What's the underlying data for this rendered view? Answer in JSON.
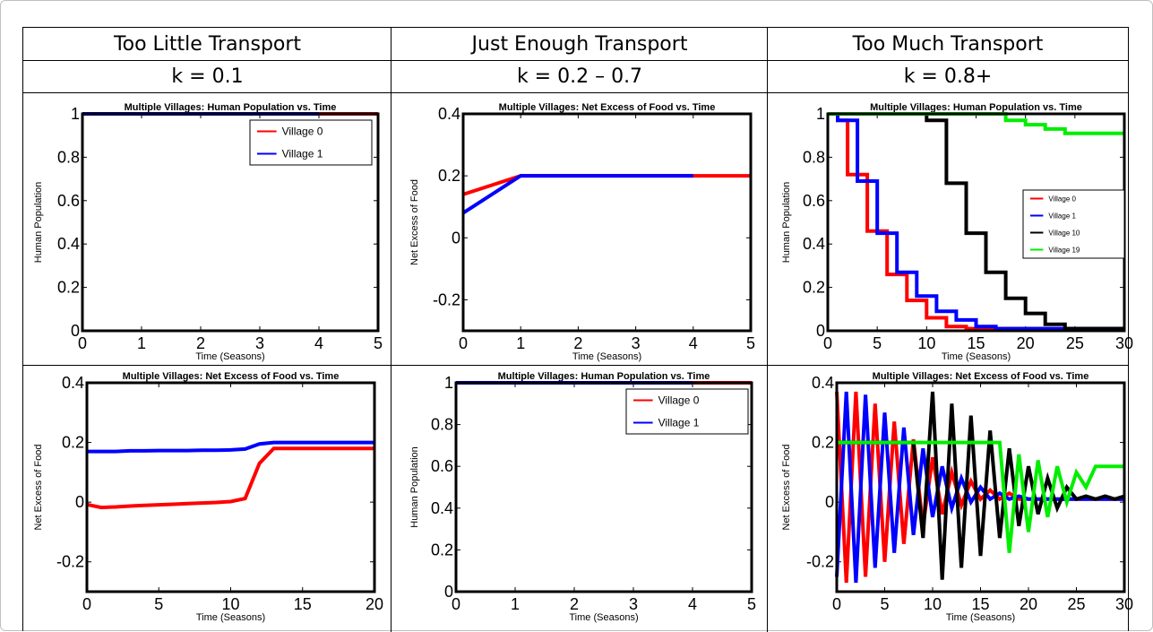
{
  "table": {
    "columns": [
      {
        "heading": "Too Little Transport",
        "k_label": "k = 0.1"
      },
      {
        "heading": "Just Enough Transport",
        "k_label": "k = 0.2 – 0.7"
      },
      {
        "heading": "Too Much Transport",
        "k_label": "k = 0.8+"
      }
    ]
  },
  "colors": {
    "village0": "#ff0000",
    "village1": "#0000ff",
    "village10": "#000000",
    "village19": "#00ee00"
  },
  "chart_data": [
    {
      "id": "r1c1",
      "type": "line",
      "title": "Multiple Villages: Human Population vs. Time",
      "xlabel": "Time (Seasons)",
      "ylabel": "Human Population",
      "xlim": [
        0,
        5
      ],
      "ylim": [
        0,
        1
      ],
      "xticks": [
        0,
        1,
        2,
        3,
        4,
        5
      ],
      "yticks": [
        0,
        0.2,
        0.4,
        0.6,
        0.8,
        1
      ],
      "yticklabels": [
        "0",
        "0.2",
        "0.4",
        "0.6",
        "0.8",
        "1"
      ],
      "legend": "top-right",
      "series": [
        {
          "name": "Village 0",
          "color": "#ff0000",
          "x": [
            0,
            1,
            2,
            3,
            4,
            5
          ],
          "y": [
            1,
            1,
            1,
            1,
            1,
            1
          ]
        },
        {
          "name": "Village 1",
          "color": "#0000ff",
          "x": [
            0,
            1,
            2,
            3,
            4
          ],
          "y": [
            1,
            1,
            1,
            1,
            1
          ]
        }
      ]
    },
    {
      "id": "r1c2",
      "type": "line",
      "title": "Multiple Villages: Net Excess of Food vs. Time",
      "xlabel": "Time (Seasons)",
      "ylabel": "Net Excess of Food",
      "xlim": [
        0,
        5
      ],
      "ylim": [
        -0.3,
        0.4
      ],
      "xticks": [
        0,
        1,
        2,
        3,
        4,
        5
      ],
      "yticks": [
        -0.2,
        0,
        0.2,
        0.4
      ],
      "yticklabels": [
        "-0.2",
        "0",
        "0.2",
        "0.4"
      ],
      "legend": "none",
      "series": [
        {
          "color": "#ff0000",
          "x": [
            0,
            1,
            2,
            3,
            4,
            5
          ],
          "y": [
            0.14,
            0.2,
            0.2,
            0.2,
            0.2,
            0.2
          ]
        },
        {
          "color": "#0000ff",
          "x": [
            0,
            1,
            2,
            3,
            4
          ],
          "y": [
            0.08,
            0.2,
            0.2,
            0.2,
            0.2
          ]
        }
      ]
    },
    {
      "id": "r1c3",
      "type": "line",
      "title": "Multiple Villages: Human Population vs. Time",
      "xlabel": "Time (Seasons)",
      "ylabel": "Human Population",
      "xlim": [
        0,
        30
      ],
      "ylim": [
        0,
        1
      ],
      "xticks": [
        0,
        5,
        10,
        15,
        20,
        25,
        30
      ],
      "yticks": [
        0,
        0.2,
        0.4,
        0.6,
        0.8,
        1
      ],
      "yticklabels": [
        "0",
        "0.2",
        "0.4",
        "0.6",
        "0.8",
        "1"
      ],
      "legend": "right",
      "series": [
        {
          "name": "Village 0",
          "color": "#ff0000",
          "step": true,
          "x": [
            0,
            1,
            2,
            3,
            4,
            5,
            6,
            7,
            8,
            9,
            10,
            11,
            12,
            13,
            14,
            15,
            30
          ],
          "y": [
            1,
            0.97,
            0.72,
            0.72,
            0.46,
            0.46,
            0.26,
            0.26,
            0.14,
            0.14,
            0.06,
            0.06,
            0.02,
            0.02,
            0.01,
            0.01,
            0.01
          ]
        },
        {
          "name": "Village 1",
          "color": "#0000ff",
          "step": true,
          "x": [
            0,
            1,
            2,
            3,
            4,
            5,
            6,
            7,
            8,
            9,
            10,
            11,
            12,
            13,
            14,
            15,
            16,
            17,
            18,
            30
          ],
          "y": [
            1,
            0.97,
            0.97,
            0.69,
            0.69,
            0.45,
            0.45,
            0.27,
            0.27,
            0.16,
            0.16,
            0.09,
            0.09,
            0.05,
            0.05,
            0.02,
            0.02,
            0.01,
            0.01,
            0.01
          ]
        },
        {
          "name": "Village 10",
          "color": "#000000",
          "step": true,
          "x": [
            0,
            9,
            10,
            11,
            12,
            13,
            14,
            15,
            16,
            17,
            18,
            19,
            20,
            21,
            22,
            23,
            24,
            30
          ],
          "y": [
            1,
            1,
            0.97,
            0.97,
            0.68,
            0.68,
            0.45,
            0.45,
            0.27,
            0.27,
            0.15,
            0.15,
            0.08,
            0.08,
            0.03,
            0.03,
            0.01,
            0.01
          ]
        },
        {
          "name": "Village 19",
          "color": "#00ee00",
          "step": true,
          "x": [
            0,
            17,
            18,
            19,
            20,
            21,
            22,
            23,
            24,
            25,
            30
          ],
          "y": [
            1,
            1,
            0.97,
            0.97,
            0.95,
            0.95,
            0.93,
            0.93,
            0.91,
            0.91,
            0.91
          ]
        }
      ]
    },
    {
      "id": "r2c1",
      "type": "line",
      "title": "Multiple Villages: Net Excess of Food vs. Time",
      "xlabel": "Time (Seasons)",
      "ylabel": "Net Excess of Food",
      "xlim": [
        0,
        20
      ],
      "ylim": [
        -0.3,
        0.4
      ],
      "xticks": [
        0,
        5,
        10,
        15,
        20
      ],
      "yticks": [
        -0.2,
        0,
        0.2,
        0.4
      ],
      "yticklabels": [
        "-0.2",
        "0",
        "0.2",
        "0.4"
      ],
      "legend": "none",
      "series": [
        {
          "color": "#ff0000",
          "x": [
            0,
            1,
            2,
            3,
            4,
            5,
            6,
            7,
            8,
            9,
            10,
            11,
            12,
            13,
            14,
            15,
            16,
            17,
            18,
            19,
            20
          ],
          "y": [
            -0.008,
            -0.018,
            -0.016,
            -0.013,
            -0.011,
            -0.009,
            -0.007,
            -0.005,
            -0.003,
            -0.001,
            0.002,
            0.012,
            0.13,
            0.18,
            0.18,
            0.18,
            0.18,
            0.18,
            0.18,
            0.18,
            0.18
          ]
        },
        {
          "color": "#0000ff",
          "x": [
            0,
            1,
            2,
            3,
            4,
            5,
            6,
            7,
            8,
            9,
            10,
            11,
            12,
            13,
            14,
            15,
            16,
            17,
            18,
            19,
            20
          ],
          "y": [
            0.17,
            0.17,
            0.17,
            0.172,
            0.172,
            0.173,
            0.173,
            0.173,
            0.174,
            0.174,
            0.175,
            0.178,
            0.195,
            0.2,
            0.2,
            0.2,
            0.2,
            0.2,
            0.2,
            0.2,
            0.2
          ]
        }
      ]
    },
    {
      "id": "r2c2",
      "type": "line",
      "title": "Multiple Villages: Human Population vs. Time",
      "xlabel": "Time (Seasons)",
      "ylabel": "Human Population",
      "xlim": [
        0,
        5
      ],
      "ylim": [
        0,
        1
      ],
      "xticks": [
        0,
        1,
        2,
        3,
        4,
        5
      ],
      "yticks": [
        0,
        0.2,
        0.4,
        0.6,
        0.8,
        1
      ],
      "yticklabels": [
        "0",
        "0.2",
        "0.4",
        "0.6",
        "0.8",
        "1"
      ],
      "legend": "top-right",
      "series": [
        {
          "name": "Village 0",
          "color": "#ff0000",
          "x": [
            0,
            1,
            2,
            3,
            4,
            5
          ],
          "y": [
            1,
            1,
            1,
            1,
            1,
            1
          ]
        },
        {
          "name": "Village 1",
          "color": "#0000ff",
          "x": [
            0,
            1,
            2,
            3,
            4
          ],
          "y": [
            1,
            1,
            1,
            1,
            1
          ]
        }
      ]
    },
    {
      "id": "r2c3",
      "type": "line",
      "title": "Multiple Villages: Net Excess of Food vs. Time",
      "xlabel": "Time (Seasons)",
      "ylabel": "Net Excess of Food",
      "xlim": [
        0,
        30
      ],
      "ylim": [
        -0.3,
        0.4
      ],
      "xticks": [
        0,
        5,
        10,
        15,
        20,
        25,
        30
      ],
      "yticks": [
        -0.2,
        0,
        0.2,
        0.4
      ],
      "yticklabels": [
        "-0.2",
        "0",
        "0.2",
        "0.4"
      ],
      "legend": "none",
      "series": [
        {
          "name": "Village 0",
          "color": "#ff0000",
          "x": [
            0,
            1,
            2,
            3,
            4,
            5,
            6,
            7,
            8,
            9,
            10,
            11,
            12,
            13,
            14,
            15,
            16,
            17,
            18,
            19,
            20,
            21,
            22,
            23,
            24,
            25,
            26,
            27,
            28,
            29,
            30
          ],
          "y": [
            0.37,
            -0.27,
            0.37,
            -0.25,
            0.33,
            -0.2,
            0.27,
            -0.14,
            0.21,
            -0.08,
            0.15,
            -0.04,
            0.1,
            -0.01,
            0.07,
            0.01,
            0.04,
            0.01,
            0.03,
            0.01,
            0.01,
            0.01,
            0.01,
            0.01,
            0.01,
            0.01,
            0.01,
            0.01,
            0.01,
            0.01,
            0.01
          ]
        },
        {
          "name": "Village 1",
          "color": "#0000ff",
          "x": [
            0,
            1,
            2,
            3,
            4,
            5,
            6,
            7,
            8,
            9,
            10,
            11,
            12,
            13,
            14,
            15,
            16,
            17,
            18,
            19,
            20,
            21,
            22,
            23,
            24,
            25,
            26,
            27,
            28,
            29,
            30
          ],
          "y": [
            -0.25,
            0.37,
            -0.27,
            0.36,
            -0.22,
            0.3,
            -0.17,
            0.25,
            -0.11,
            0.18,
            -0.05,
            0.12,
            -0.02,
            0.08,
            0,
            0.05,
            0.01,
            0.03,
            0.01,
            0.02,
            0.01,
            0.01,
            0.01,
            0.01,
            0.01,
            0.01,
            0.01,
            0.01,
            0.01,
            0.01,
            0.01
          ]
        },
        {
          "name": "Village 10",
          "color": "#000000",
          "x": [
            0,
            1,
            2,
            3,
            4,
            5,
            6,
            7,
            8,
            9,
            10,
            11,
            12,
            13,
            14,
            15,
            16,
            17,
            18,
            19,
            20,
            21,
            22,
            23,
            24,
            25,
            26,
            27,
            28,
            29,
            30
          ],
          "y": [
            0.2,
            0.2,
            0.2,
            0.2,
            0.2,
            0.2,
            0.2,
            0.2,
            0.2,
            -0.12,
            0.37,
            -0.26,
            0.33,
            -0.22,
            0.29,
            -0.18,
            0.24,
            -0.12,
            0.18,
            -0.08,
            0.12,
            -0.04,
            0.08,
            -0.02,
            0.05,
            0.01,
            0.02,
            0.01,
            0.02,
            0.01,
            0.02
          ]
        },
        {
          "name": "Village 19",
          "color": "#00ee00",
          "x": [
            0,
            1,
            2,
            3,
            4,
            5,
            6,
            7,
            8,
            9,
            10,
            11,
            12,
            13,
            14,
            15,
            16,
            17,
            18,
            19,
            20,
            21,
            22,
            23,
            24,
            25,
            26,
            27,
            28,
            29,
            30
          ],
          "y": [
            0.2,
            0.2,
            0.2,
            0.2,
            0.2,
            0.2,
            0.2,
            0.2,
            0.2,
            0.2,
            0.2,
            0.2,
            0.2,
            0.2,
            0.2,
            0.2,
            0.2,
            0.2,
            -0.17,
            0.16,
            -0.1,
            0.14,
            -0.05,
            0.12,
            0,
            0.1,
            0.05,
            0.12,
            0.12,
            0.12,
            0.12
          ]
        }
      ]
    }
  ]
}
